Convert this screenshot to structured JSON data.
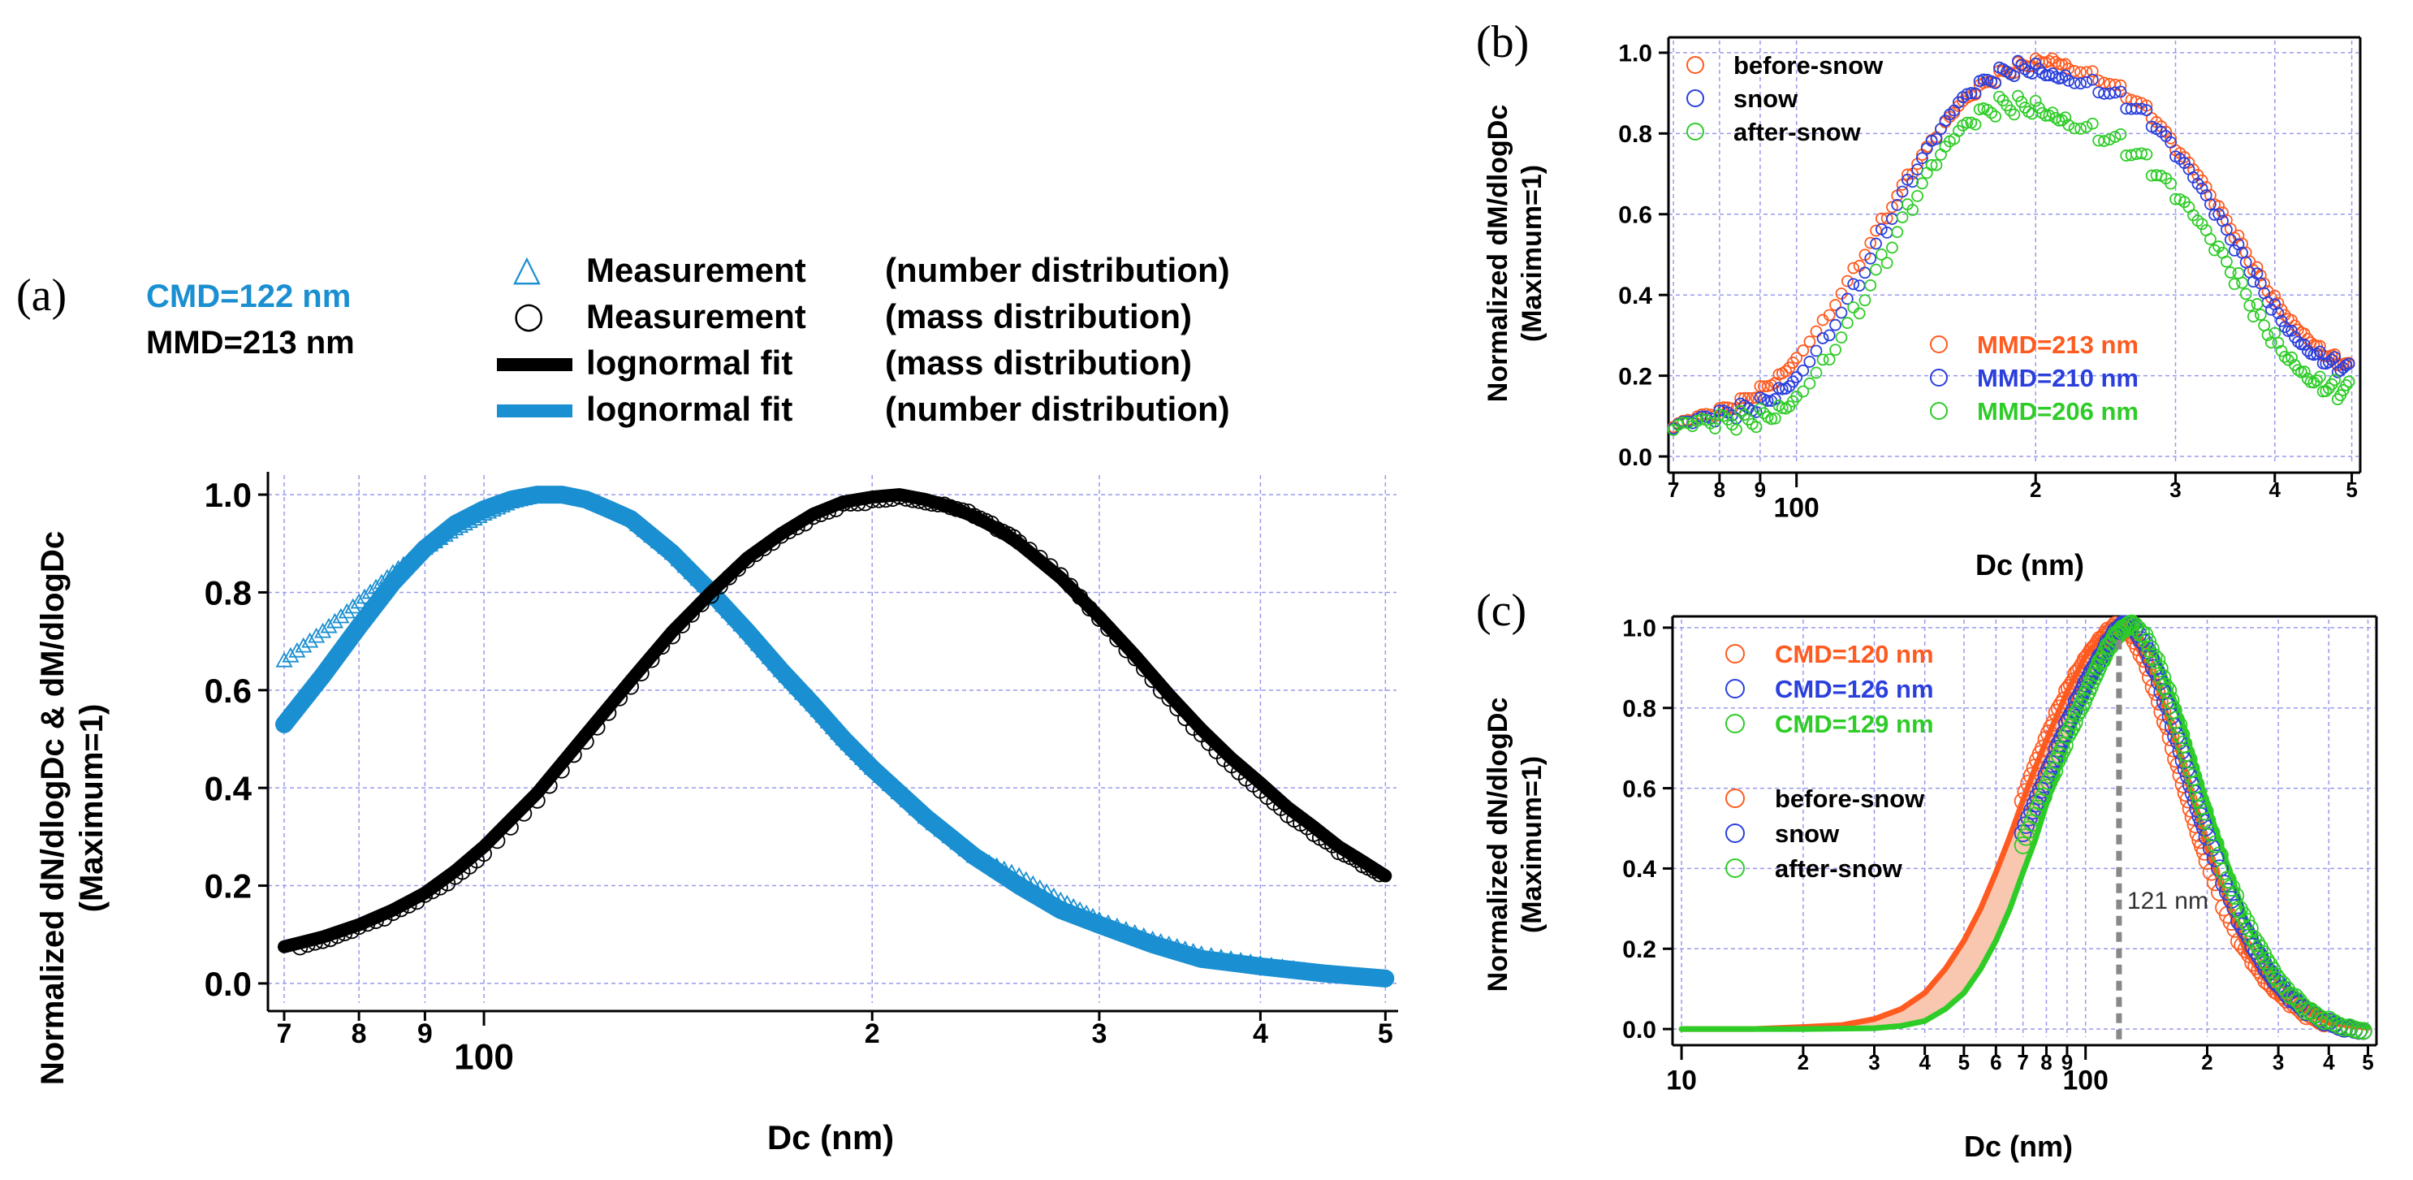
{
  "colors": {
    "number_fit": "#1a8fd1",
    "mass_fit": "#000000",
    "before_snow": "#ff5a1f",
    "snow": "#2a3fdc",
    "after_snow": "#2ecc27",
    "grid": "#9999ee",
    "dash": "#888888",
    "fill": "#f9c6b0"
  },
  "chart_data": [
    {
      "panel": "(a)",
      "type": "scatter",
      "xlabel": "Dc (nm)",
      "ylabel_line1": "Normalized dN/dlogDc & dM/dlogDc",
      "ylabel_line2": "(Maximum=1)",
      "x_scale": "log",
      "xlim": [
        68,
        510
      ],
      "ylim": [
        -0.04,
        1.04
      ],
      "x_ticks": [
        {
          "v": 70,
          "label": "7"
        },
        {
          "v": 80,
          "label": "8"
        },
        {
          "v": 90,
          "label": "9"
        },
        {
          "v": 100,
          "label": "100"
        },
        {
          "v": 200,
          "label": "2"
        },
        {
          "v": 300,
          "label": "3"
        },
        {
          "v": 400,
          "label": "4"
        },
        {
          "v": 500,
          "label": "5"
        }
      ],
      "y_ticks": [
        "0.0",
        "0.2",
        "0.4",
        "0.6",
        "0.8",
        "1.0"
      ],
      "annotations": {
        "cmd": "CMD=122 nm",
        "mmd": "MMD=213 nm"
      },
      "legend": [
        {
          "marker": "△",
          "name": "Measurement",
          "desc": "(number distribution)"
        },
        {
          "marker": "○",
          "name": "Measurement",
          "desc": "(mass distribution)"
        },
        {
          "marker": "line-black",
          "name": "lognormal fit",
          "desc": "(mass distribution)"
        },
        {
          "marker": "line-blue",
          "name": "lognormal fit",
          "desc": "(number distribution)"
        }
      ],
      "series": [
        {
          "name": "Measurement (number distribution)",
          "kind": "triangles",
          "x": [
            70,
            75,
            80,
            85,
            90,
            95,
            100,
            105,
            110,
            115,
            120,
            125,
            130,
            140,
            150,
            160,
            170,
            180,
            190,
            200,
            220,
            240,
            260,
            280,
            300,
            330,
            360,
            400,
            450,
            500
          ],
          "y": [
            0.66,
            0.72,
            0.78,
            0.84,
            0.89,
            0.93,
            0.96,
            0.985,
            0.998,
            1.0,
            0.99,
            0.97,
            0.95,
            0.88,
            0.8,
            0.72,
            0.64,
            0.57,
            0.5,
            0.44,
            0.34,
            0.26,
            0.22,
            0.17,
            0.13,
            0.09,
            0.06,
            0.04,
            0.02,
            0.01
          ]
        },
        {
          "name": "lognormal fit (number distribution)",
          "kind": "line",
          "x": [
            70,
            75,
            80,
            85,
            90,
            95,
            100,
            105,
            110,
            115,
            120,
            125,
            130,
            140,
            150,
            160,
            170,
            180,
            190,
            200,
            220,
            240,
            260,
            280,
            300,
            330,
            360,
            400,
            450,
            500
          ],
          "y": [
            0.53,
            0.63,
            0.73,
            0.82,
            0.89,
            0.94,
            0.97,
            0.99,
            1.0,
            1.0,
            0.99,
            0.97,
            0.95,
            0.88,
            0.8,
            0.72,
            0.64,
            0.57,
            0.5,
            0.44,
            0.34,
            0.26,
            0.2,
            0.15,
            0.12,
            0.08,
            0.05,
            0.035,
            0.02,
            0.01
          ]
        },
        {
          "name": "Measurement (mass distribution)",
          "kind": "circles",
          "x": [
            72,
            76,
            80,
            85,
            90,
            95,
            100,
            110,
            120,
            130,
            140,
            150,
            160,
            170,
            180,
            190,
            200,
            210,
            220,
            230,
            240,
            250,
            260,
            280,
            300,
            320,
            340,
            360,
            380,
            400,
            420,
            440,
            460,
            480,
            500
          ],
          "y": [
            0.07,
            0.085,
            0.11,
            0.14,
            0.18,
            0.22,
            0.27,
            0.38,
            0.5,
            0.61,
            0.71,
            0.79,
            0.86,
            0.91,
            0.95,
            0.98,
            0.99,
            1.0,
            0.99,
            0.98,
            0.96,
            0.93,
            0.9,
            0.83,
            0.74,
            0.66,
            0.58,
            0.51,
            0.45,
            0.4,
            0.35,
            0.31,
            0.27,
            0.24,
            0.21
          ]
        },
        {
          "name": "lognormal fit (mass distribution)",
          "kind": "line",
          "x": [
            70,
            75,
            80,
            85,
            90,
            95,
            100,
            110,
            120,
            130,
            140,
            150,
            160,
            170,
            180,
            190,
            200,
            210,
            220,
            230,
            240,
            250,
            260,
            280,
            300,
            320,
            340,
            360,
            380,
            400,
            420,
            440,
            460,
            480,
            500
          ],
          "y": [
            0.075,
            0.095,
            0.12,
            0.15,
            0.185,
            0.23,
            0.28,
            0.39,
            0.51,
            0.62,
            0.72,
            0.8,
            0.87,
            0.92,
            0.96,
            0.985,
            0.995,
            1.0,
            0.99,
            0.975,
            0.955,
            0.93,
            0.9,
            0.83,
            0.75,
            0.67,
            0.59,
            0.52,
            0.46,
            0.41,
            0.36,
            0.32,
            0.28,
            0.25,
            0.22
          ]
        }
      ]
    },
    {
      "panel": "(b)",
      "type": "scatter",
      "xlabel": "Dc (nm)",
      "ylabel_line1": "Normalized dM/dlogDc",
      "ylabel_line2": "(Maximum=1)",
      "x_scale": "log",
      "xlim": [
        69,
        510
      ],
      "ylim": [
        -0.02,
        1.03
      ],
      "x_ticks": [
        {
          "v": 70,
          "label": "7"
        },
        {
          "v": 80,
          "label": "8"
        },
        {
          "v": 90,
          "label": "9"
        },
        {
          "v": 100,
          "label": "100"
        },
        {
          "v": 200,
          "label": "2"
        },
        {
          "v": 300,
          "label": "3"
        },
        {
          "v": 400,
          "label": "4"
        },
        {
          "v": 500,
          "label": "5"
        }
      ],
      "y_ticks": [
        "0.0",
        "0.2",
        "0.4",
        "0.6",
        "0.8",
        "1.0"
      ],
      "legend": [
        "before-snow",
        "snow",
        "after-snow"
      ],
      "annotations": [
        "MMD=213 nm",
        "MMD=210 nm",
        "MMD=206 nm"
      ],
      "series": [
        {
          "name": "before-snow",
          "x": [
            70,
            75,
            80,
            85,
            90,
            95,
            100,
            110,
            120,
            130,
            140,
            150,
            160,
            170,
            180,
            190,
            200,
            210,
            220,
            240,
            260,
            280,
            300,
            320,
            340,
            360,
            380,
            400,
            420,
            440,
            460,
            480,
            500
          ],
          "y": [
            0.06,
            0.08,
            0.1,
            0.13,
            0.17,
            0.21,
            0.26,
            0.37,
            0.49,
            0.6,
            0.7,
            0.78,
            0.85,
            0.9,
            0.94,
            0.97,
            0.99,
            1.0,
            0.98,
            0.95,
            0.9,
            0.84,
            0.75,
            0.68,
            0.6,
            0.53,
            0.46,
            0.4,
            0.35,
            0.31,
            0.27,
            0.24,
            0.21
          ]
        },
        {
          "name": "snow",
          "x": [
            70,
            75,
            80,
            85,
            90,
            95,
            100,
            110,
            120,
            130,
            140,
            150,
            160,
            170,
            180,
            190,
            200,
            210,
            220,
            240,
            260,
            280,
            300,
            320,
            340,
            360,
            380,
            400,
            420,
            440,
            460,
            480,
            500
          ],
          "y": [
            0.05,
            0.065,
            0.085,
            0.11,
            0.14,
            0.18,
            0.22,
            0.33,
            0.45,
            0.57,
            0.68,
            0.77,
            0.85,
            0.9,
            0.94,
            0.97,
            0.98,
            0.97,
            0.96,
            0.93,
            0.88,
            0.82,
            0.73,
            0.65,
            0.57,
            0.5,
            0.44,
            0.38,
            0.33,
            0.29,
            0.26,
            0.23,
            0.2
          ]
        },
        {
          "name": "after-snow",
          "x": [
            70,
            75,
            80,
            85,
            90,
            95,
            100,
            110,
            120,
            130,
            140,
            150,
            160,
            170,
            180,
            190,
            200,
            210,
            220,
            240,
            260,
            280,
            300,
            320,
            340,
            360,
            380,
            400,
            420,
            440,
            460,
            480,
            500
          ],
          "y": [
            0.04,
            0.05,
            0.065,
            0.085,
            0.11,
            0.14,
            0.18,
            0.28,
            0.39,
            0.5,
            0.61,
            0.7,
            0.77,
            0.82,
            0.86,
            0.88,
            0.89,
            0.88,
            0.86,
            0.82,
            0.77,
            0.7,
            0.62,
            0.55,
            0.48,
            0.42,
            0.36,
            0.31,
            0.27,
            0.23,
            0.2,
            0.17,
            0.15
          ]
        }
      ]
    },
    {
      "panel": "(c)",
      "type": "scatter",
      "xlabel": "Dc (nm)",
      "ylabel_line1": "Normalized dN/dlogDc",
      "ylabel_line2": "(Maximum=1)",
      "x_scale": "log",
      "xlim": [
        9.5,
        520
      ],
      "ylim": [
        -0.02,
        1.02
      ],
      "x_ticks": [
        {
          "v": 10,
          "label": "10"
        },
        {
          "v": 20,
          "label": "2"
        },
        {
          "v": 30,
          "label": "3"
        },
        {
          "v": 40,
          "label": "4"
        },
        {
          "v": 50,
          "label": "5"
        },
        {
          "v": 60,
          "label": "6"
        },
        {
          "v": 70,
          "label": "7"
        },
        {
          "v": 80,
          "label": "8"
        },
        {
          "v": 90,
          "label": "9"
        },
        {
          "v": 100,
          "label": "100"
        },
        {
          "v": 200,
          "label": "2"
        },
        {
          "v": 300,
          "label": "3"
        },
        {
          "v": 400,
          "label": "4"
        },
        {
          "v": 500,
          "label": "5"
        }
      ],
      "y_ticks": [
        "0.0",
        "0.2",
        "0.4",
        "0.6",
        "0.8",
        "1.0"
      ],
      "annotations": [
        "CMD=120 nm",
        "CMD=126 nm",
        "CMD=129 nm"
      ],
      "legend": [
        "before-snow",
        "snow",
        "after-snow"
      ],
      "vline": {
        "x": 121,
        "label": "121 nm"
      },
      "series": [
        {
          "name": "before-snow",
          "x": [
            70,
            75,
            80,
            85,
            90,
            95,
            100,
            105,
            110,
            115,
            120,
            125,
            130,
            140,
            150,
            160,
            170,
            180,
            190,
            200,
            220,
            240,
            260,
            280,
            300,
            330,
            360,
            400,
            450,
            500
          ],
          "y": [
            0.56,
            0.64,
            0.71,
            0.78,
            0.84,
            0.89,
            0.93,
            0.96,
            0.98,
            0.995,
            1.0,
            0.99,
            0.97,
            0.91,
            0.83,
            0.75,
            0.66,
            0.58,
            0.5,
            0.43,
            0.31,
            0.22,
            0.16,
            0.11,
            0.08,
            0.05,
            0.03,
            0.02,
            0.01,
            0.005
          ]
        },
        {
          "name": "snow",
          "x": [
            70,
            75,
            80,
            85,
            90,
            95,
            100,
            105,
            110,
            115,
            120,
            125,
            130,
            140,
            150,
            160,
            170,
            180,
            190,
            200,
            220,
            240,
            260,
            280,
            300,
            330,
            360,
            400,
            450,
            500
          ],
          "y": [
            0.48,
            0.55,
            0.62,
            0.69,
            0.76,
            0.82,
            0.87,
            0.91,
            0.94,
            0.97,
            0.99,
            1.0,
            0.995,
            0.95,
            0.88,
            0.8,
            0.72,
            0.64,
            0.56,
            0.49,
            0.37,
            0.27,
            0.2,
            0.14,
            0.1,
            0.06,
            0.04,
            0.02,
            0.01,
            0.005
          ]
        },
        {
          "name": "after-snow",
          "x": [
            70,
            75,
            80,
            85,
            90,
            95,
            100,
            105,
            110,
            115,
            120,
            125,
            130,
            140,
            150,
            160,
            170,
            180,
            190,
            200,
            220,
            240,
            260,
            280,
            300,
            330,
            360,
            400,
            450,
            500
          ],
          "y": [
            0.45,
            0.52,
            0.59,
            0.66,
            0.73,
            0.79,
            0.84,
            0.89,
            0.93,
            0.96,
            0.98,
            0.99,
            1.0,
            0.97,
            0.91,
            0.84,
            0.76,
            0.68,
            0.6,
            0.53,
            0.4,
            0.3,
            0.22,
            0.16,
            0.11,
            0.07,
            0.04,
            0.025,
            0.012,
            0.005
          ]
        },
        {
          "name": "before-snow fit",
          "kind": "line",
          "x": [
            10,
            15,
            20,
            25,
            30,
            35,
            40,
            45,
            50,
            55,
            60,
            65,
            70,
            75,
            80,
            90,
            100,
            110,
            120,
            130,
            150,
            170,
            200,
            250,
            300,
            400,
            500
          ],
          "y": [
            0.0,
            0.0,
            0.005,
            0.01,
            0.025,
            0.05,
            0.09,
            0.15,
            0.22,
            0.3,
            0.39,
            0.48,
            0.57,
            0.65,
            0.72,
            0.84,
            0.93,
            0.98,
            1.0,
            0.98,
            0.86,
            0.69,
            0.45,
            0.19,
            0.08,
            0.015,
            0.003
          ]
        },
        {
          "name": "after-snow fit",
          "kind": "line",
          "x": [
            10,
            20,
            30,
            35,
            40,
            45,
            50,
            55,
            60,
            65,
            70,
            75,
            80,
            90,
            100,
            110,
            120,
            130,
            150,
            170,
            200,
            250,
            300,
            400,
            500
          ],
          "y": [
            0.0,
            0.0,
            0.002,
            0.008,
            0.02,
            0.05,
            0.09,
            0.15,
            0.22,
            0.3,
            0.39,
            0.47,
            0.56,
            0.71,
            0.83,
            0.92,
            0.98,
            1.0,
            0.93,
            0.79,
            0.56,
            0.27,
            0.12,
            0.025,
            0.005
          ]
        }
      ]
    }
  ]
}
